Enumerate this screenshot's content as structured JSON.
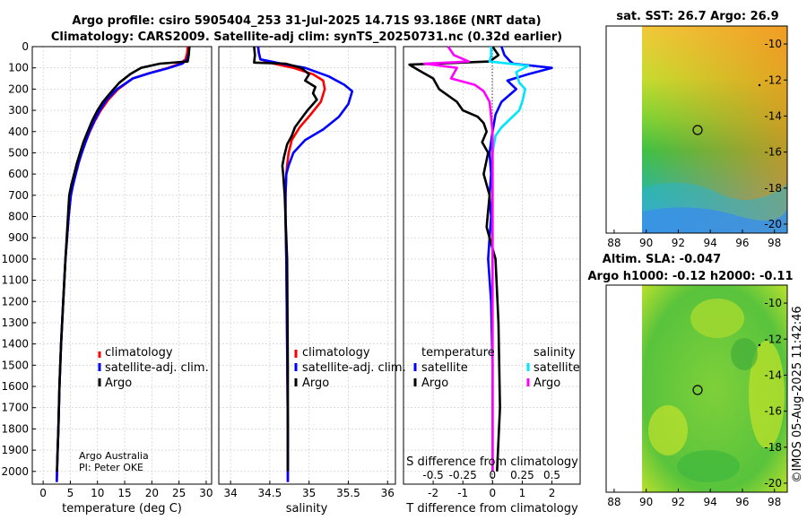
{
  "header": {
    "title_line1": "Argo profile: csiro 5905404_253 31-Jul-2025 14.71S 93.186E (NRT data)",
    "title_line2": "Climatology: CARS2009. Satellite-adj clim: synTS_20250731.nc (0.32d earlier)"
  },
  "colors": {
    "climatology": "#ff0000",
    "satellite_adj": "#0000ff",
    "argo": "#000000",
    "sal_satellite": "#00e5ff",
    "sal_argo": "#ff00ff"
  },
  "chart_data": [
    {
      "type": "line",
      "id": "temperature",
      "xlabel": "temperature (deg C)",
      "ylabel": "",
      "xlim": [
        -2,
        31
      ],
      "ylim": [
        2060,
        0
      ],
      "xticks": [
        0,
        5,
        10,
        15,
        20,
        25,
        30
      ],
      "yticks": [
        0,
        100,
        200,
        300,
        400,
        500,
        600,
        700,
        800,
        900,
        1000,
        1100,
        1200,
        1300,
        1400,
        1500,
        1600,
        1700,
        1800,
        1900,
        2000
      ],
      "legend": [
        "climatology",
        "satellite-adj. clim.",
        "Argo"
      ],
      "legend_position": "lower-right",
      "annotation": [
        "Argo Australia",
        "PI: Peter OKE"
      ],
      "series": [
        {
          "name": "climatology",
          "x": [
            26.6,
            26.5,
            26.2,
            25.2,
            23.0,
            19.5,
            16.5,
            13.8,
            12.0,
            10.6,
            9.5,
            8.6,
            7.8,
            7.1,
            6.5,
            6.0,
            5.5,
            5.1,
            4.7,
            4.1,
            3.7,
            3.3,
            3.0,
            2.8,
            2.6,
            2.55,
            2.5
          ],
          "y": [
            0,
            30,
            60,
            80,
            100,
            125,
            150,
            200,
            250,
            300,
            350,
            400,
            450,
            500,
            550,
            600,
            650,
            700,
            800,
            1000,
            1200,
            1400,
            1600,
            1800,
            1950,
            2000,
            2050
          ]
        },
        {
          "name": "satellite-adj. clim.",
          "x": [
            26.9,
            26.8,
            26.5,
            25.6,
            23.2,
            19.6,
            16.5,
            13.6,
            11.7,
            10.4,
            9.4,
            8.5,
            7.8,
            7.1,
            6.5,
            6.0,
            5.5,
            5.1,
            4.7,
            4.1,
            3.7,
            3.3,
            3.0,
            2.8,
            2.6,
            2.55,
            2.5
          ],
          "y": [
            0,
            30,
            60,
            80,
            100,
            125,
            150,
            200,
            250,
            300,
            350,
            400,
            450,
            500,
            550,
            600,
            650,
            700,
            800,
            1000,
            1200,
            1400,
            1600,
            1800,
            1950,
            2000,
            2050
          ]
        },
        {
          "name": "Argo",
          "x": [
            26.9,
            26.8,
            26.6,
            21.5,
            18.0,
            16.0,
            14.0,
            12.3,
            11.0,
            10.0,
            9.0,
            8.2,
            7.4,
            6.8,
            6.2,
            5.7,
            5.2,
            4.8,
            4.1,
            3.7,
            3.3,
            3.0,
            2.8,
            2.6,
            2.55
          ],
          "y": [
            0,
            40,
            70,
            80,
            100,
            130,
            170,
            220,
            260,
            300,
            350,
            400,
            450,
            500,
            550,
            600,
            650,
            700,
            1000,
            1200,
            1400,
            1600,
            1800,
            1950,
            2000
          ]
        }
      ]
    },
    {
      "type": "line",
      "id": "salinity",
      "xlabel": "salinity",
      "xlim": [
        33.85,
        36.1
      ],
      "ylim": [
        2060,
        0
      ],
      "xticks": [
        34,
        34.5,
        35,
        35.5,
        36
      ],
      "legend": [
        "climatology",
        "satellite-adj. clim.",
        "Argo"
      ],
      "legend_position": "lower-right",
      "series": [
        {
          "name": "climatology",
          "x": [
            34.35,
            34.36,
            34.38,
            34.55,
            34.8,
            35.05,
            35.18,
            35.2,
            35.15,
            35.02,
            34.88,
            34.78,
            34.74,
            34.72,
            34.71,
            34.7,
            34.7,
            34.71,
            34.72,
            34.73,
            34.73
          ],
          "y": [
            0,
            30,
            60,
            80,
            100,
            130,
            160,
            200,
            260,
            320,
            380,
            440,
            500,
            560,
            600,
            700,
            800,
            1000,
            1400,
            1800,
            2050
          ]
        },
        {
          "name": "satellite-adj. clim.",
          "x": [
            34.35,
            34.36,
            34.38,
            34.65,
            34.95,
            35.25,
            35.45,
            35.55,
            35.5,
            35.38,
            35.18,
            34.95,
            34.8,
            34.74,
            34.71,
            34.7,
            34.7,
            34.71,
            34.72,
            34.73,
            34.73
          ],
          "y": [
            0,
            30,
            60,
            80,
            100,
            140,
            180,
            210,
            270,
            330,
            390,
            440,
            500,
            560,
            600,
            700,
            800,
            1000,
            1400,
            1800,
            2050
          ]
        },
        {
          "name": "Argo",
          "x": [
            34.3,
            34.31,
            34.3,
            34.7,
            34.9,
            35.0,
            34.95,
            35.08,
            35.05,
            35.1,
            34.98,
            34.9,
            34.82,
            34.78,
            34.72,
            34.68,
            34.66,
            34.67,
            34.69,
            34.7,
            34.72,
            34.73,
            34.73
          ],
          "y": [
            0,
            40,
            75,
            80,
            100,
            130,
            160,
            190,
            220,
            250,
            300,
            340,
            380,
            420,
            460,
            520,
            560,
            600,
            700,
            800,
            1000,
            1500,
            2000
          ]
        }
      ]
    },
    {
      "type": "line",
      "id": "difference",
      "xlabel": "T difference from climatology",
      "xlabel_top": "S difference from climatology",
      "xlim": [
        -3.0,
        2.95
      ],
      "ylim": [
        2060,
        0
      ],
      "xticks": [
        -2,
        -1,
        0,
        1,
        2
      ],
      "xticks_s_labels": [
        "-0.5",
        "-0.25",
        "0",
        "0.25",
        "0.5"
      ],
      "legend_headers": [
        "temperature",
        "salinity"
      ],
      "legend": [
        "satellite",
        "Argo",
        "satellite",
        "Argo"
      ],
      "series": [
        {
          "name": "temperature satellite",
          "x": [
            0.3,
            0.4,
            0.6,
            0.7,
            2.0,
            1.2,
            0.5,
            0.8,
            0.3,
            0.1,
            0.0,
            -0.1,
            -0.05,
            -0.1,
            -0.05,
            -0.1,
            -0.15,
            -0.05,
            0.0,
            0.0,
            0.0
          ],
          "y": [
            0,
            40,
            70,
            80,
            100,
            130,
            160,
            200,
            260,
            320,
            400,
            500,
            600,
            700,
            800,
            900,
            1000,
            1200,
            1500,
            1800,
            2000
          ]
        },
        {
          "name": "temperature Argo",
          "x": [
            0.0,
            0.2,
            -0.1,
            -2.8,
            -2.5,
            -2.0,
            -1.8,
            -1.2,
            -1.0,
            -0.5,
            -0.3,
            -0.2,
            -0.35,
            -0.15,
            -0.3,
            -0.1,
            -0.2,
            0.1,
            0.2,
            0.25,
            0.15
          ],
          "y": [
            0,
            40,
            70,
            85,
            110,
            150,
            200,
            260,
            300,
            330,
            360,
            400,
            450,
            500,
            600,
            700,
            850,
            1000,
            1300,
            1700,
            2000
          ]
        },
        {
          "name": "salinity satellite",
          "x": [
            -0.05,
            -0.05,
            -0.1,
            1.2,
            0.8,
            0.9,
            1.1,
            1.0,
            0.9,
            0.6,
            0.3,
            0.1,
            0.0,
            0.0,
            0.0,
            0.0,
            0.0
          ],
          "y": [
            0,
            40,
            70,
            90,
            120,
            170,
            200,
            260,
            300,
            340,
            380,
            420,
            500,
            700,
            1000,
            1500,
            2000
          ]
        },
        {
          "name": "salinity Argo",
          "x": [
            -1.5,
            -1.3,
            -0.8,
            -2.3,
            -1.2,
            -1.4,
            -0.6,
            -0.3,
            -0.1,
            -0.05,
            0.0,
            0.0,
            0.0,
            0.0
          ],
          "y": [
            0,
            40,
            70,
            80,
            100,
            150,
            180,
            210,
            260,
            330,
            400,
            700,
            1200,
            2000
          ]
        }
      ]
    },
    {
      "type": "heatmap",
      "id": "sst_map",
      "title": "sat. SST: 26.7 Argo: 26.9",
      "xlim": [
        87.5,
        98.8
      ],
      "ylim": [
        -20.5,
        -9.0
      ],
      "xticks": [
        88,
        90,
        92,
        94,
        96,
        98
      ],
      "yticks": [
        -10,
        -12,
        -14,
        -16,
        -18,
        -20
      ],
      "data_x_range": [
        90,
        98.8
      ],
      "marker": {
        "lon": 93.186,
        "lat": -14.71
      }
    },
    {
      "type": "heatmap",
      "id": "sla_map",
      "title": "Altim. SLA: -0.047",
      "subtitle": "Argo h1000: -0.12 h2000: -0.11",
      "xlim": [
        87.5,
        98.8
      ],
      "ylim": [
        -20.5,
        -9.0
      ],
      "xticks": [
        88,
        90,
        92,
        94,
        96,
        98
      ],
      "yticks": [
        -10,
        -12,
        -14,
        -16,
        -18,
        -20
      ],
      "data_x_range": [
        90,
        98.8
      ],
      "marker": {
        "lon": 93.186,
        "lat": -14.71
      }
    }
  ],
  "watermark": "©IMOS 05-Aug-2025 11:42:46"
}
